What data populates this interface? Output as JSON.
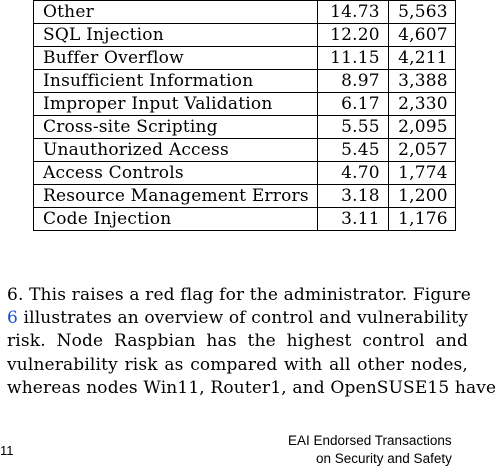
{
  "table": {
    "rows": [
      {
        "category": "Other",
        "percent": "14.73",
        "count": "5,563"
      },
      {
        "category": "SQL Injection",
        "percent": "12.20",
        "count": "4,607"
      },
      {
        "category": "Buffer Overflow",
        "percent": "11.15",
        "count": "4,211"
      },
      {
        "category": "Insufficient Information",
        "percent": "8.97",
        "count": "3,388"
      },
      {
        "category": "Improper Input Validation",
        "percent": "6.17",
        "count": "2,330"
      },
      {
        "category": "Cross-site Scripting",
        "percent": "5.55",
        "count": "2,095"
      },
      {
        "category": "Unauthorized Access",
        "percent": "5.45",
        "count": "2,057"
      },
      {
        "category": "Access Controls",
        "percent": "4.70",
        "count": "1,774"
      },
      {
        "category": "Resource Management Errors",
        "percent": "3.18",
        "count": "1,200"
      },
      {
        "category": "Code Injection",
        "percent": "3.11",
        "count": "1,176"
      }
    ]
  },
  "paragraph": {
    "l1_a": "6. This raises a red flag for the administrator. Figure",
    "l2_ref": "6",
    "l2_b": " illustrates an overview of control and vulnerability",
    "l3": "risk. Node Raspbian has the highest control and",
    "l4": "vulnerability risk as compared with all other nodes,",
    "l5": "whereas nodes Win11, Router1, and OpenSUSE15 have"
  },
  "footer": {
    "page_number": "11",
    "journal_line1": "EAI Endorsed Transactions",
    "journal_line2": "on Security and Safety"
  }
}
